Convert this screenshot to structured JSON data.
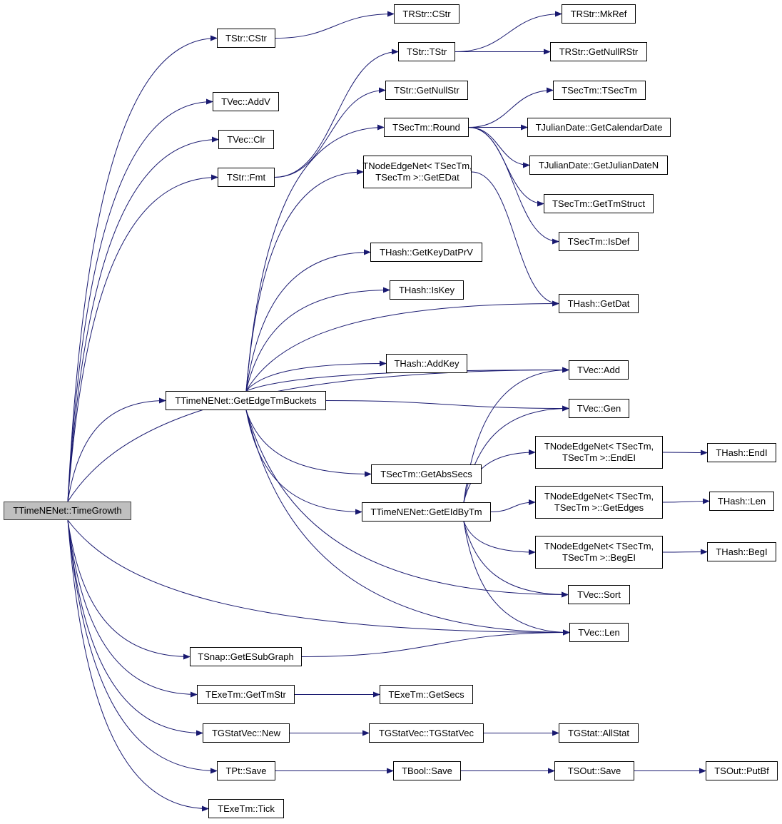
{
  "colors": {
    "edge": "#191970",
    "root_fill": "#bfbfbf",
    "node_fill": "#ffffff",
    "border": "#000000"
  },
  "nodes": [
    {
      "id": "root",
      "lines": [
        "TTimeNENet::TimeGrowth"
      ]
    },
    {
      "id": "strcstr",
      "lines": [
        "TStr::CStr"
      ]
    },
    {
      "id": "rstrcstr",
      "lines": [
        "TRStr::CStr"
      ]
    },
    {
      "id": "mkref",
      "lines": [
        "TRStr::MkRef"
      ]
    },
    {
      "id": "strtstr",
      "lines": [
        "TStr::TStr"
      ]
    },
    {
      "id": "getnullrstr",
      "lines": [
        "TRStr::GetNullRStr"
      ]
    },
    {
      "id": "addv",
      "lines": [
        "TVec::AddV"
      ]
    },
    {
      "id": "getnullstr",
      "lines": [
        "TStr::GetNullStr"
      ]
    },
    {
      "id": "tsectm",
      "lines": [
        "TSecTm::TSecTm"
      ]
    },
    {
      "id": "clr",
      "lines": [
        "TVec::Clr"
      ]
    },
    {
      "id": "round",
      "lines": [
        "TSecTm::Round"
      ]
    },
    {
      "id": "calendar",
      "lines": [
        "TJulianDate::GetCalendarDate"
      ]
    },
    {
      "id": "fmt",
      "lines": [
        "TStr::Fmt"
      ]
    },
    {
      "id": "getedat",
      "lines": [
        "TNodeEdgeNet< TSecTm,",
        "TSecTm >::GetEDat"
      ]
    },
    {
      "id": "juliann",
      "lines": [
        "TJulianDate::GetJulianDateN"
      ]
    },
    {
      "id": "tmstruct",
      "lines": [
        "TSecTm::GetTmStruct"
      ]
    },
    {
      "id": "isdef",
      "lines": [
        "TSecTm::IsDef"
      ]
    },
    {
      "id": "keydatprv",
      "lines": [
        "THash::GetKeyDatPrV"
      ]
    },
    {
      "id": "iskey",
      "lines": [
        "THash::IsKey"
      ]
    },
    {
      "id": "getdat",
      "lines": [
        "THash::GetDat"
      ]
    },
    {
      "id": "addkey",
      "lines": [
        "THash::AddKey"
      ]
    },
    {
      "id": "vecadd",
      "lines": [
        "TVec::Add"
      ]
    },
    {
      "id": "buckets",
      "lines": [
        "TTimeNENet::GetEdgeTmBuckets"
      ]
    },
    {
      "id": "vecgen",
      "lines": [
        "TVec::Gen"
      ]
    },
    {
      "id": "endei",
      "lines": [
        "TNodeEdgeNet< TSecTm,",
        "TSecTm >::EndEI"
      ]
    },
    {
      "id": "hashendi",
      "lines": [
        "THash::EndI"
      ]
    },
    {
      "id": "abssecs",
      "lines": [
        "TSecTm::GetAbsSecs"
      ]
    },
    {
      "id": "getedges",
      "lines": [
        "TNodeEdgeNet< TSecTm,",
        "TSecTm >::GetEdges"
      ]
    },
    {
      "id": "hashlen",
      "lines": [
        "THash::Len"
      ]
    },
    {
      "id": "eidbytm",
      "lines": [
        "TTimeNENet::GetEIdByTm"
      ]
    },
    {
      "id": "begei",
      "lines": [
        "TNodeEdgeNet< TSecTm,",
        "TSecTm >::BegEI"
      ]
    },
    {
      "id": "hashbegi",
      "lines": [
        "THash::BegI"
      ]
    },
    {
      "id": "vecsort",
      "lines": [
        "TVec::Sort"
      ]
    },
    {
      "id": "veclen",
      "lines": [
        "TVec::Len"
      ]
    },
    {
      "id": "esubgraph",
      "lines": [
        "TSnap::GetESubGraph"
      ]
    },
    {
      "id": "gettmstr",
      "lines": [
        "TExeTm::GetTmStr"
      ]
    },
    {
      "id": "getsecs",
      "lines": [
        "TExeTm::GetSecs"
      ]
    },
    {
      "id": "gstatnew",
      "lines": [
        "TGStatVec::New"
      ]
    },
    {
      "id": "gstatctor",
      "lines": [
        "TGStatVec::TGStatVec"
      ]
    },
    {
      "id": "allstat",
      "lines": [
        "TGStat::AllStat"
      ]
    },
    {
      "id": "ptsave",
      "lines": [
        "TPt::Save"
      ]
    },
    {
      "id": "boolsave",
      "lines": [
        "TBool::Save"
      ]
    },
    {
      "id": "soutsave",
      "lines": [
        "TSOut::Save"
      ]
    },
    {
      "id": "putbf",
      "lines": [
        "TSOut::PutBf"
      ]
    },
    {
      "id": "tick",
      "lines": [
        "TExeTm::Tick"
      ]
    }
  ],
  "edges": [
    [
      "root",
      "strcstr"
    ],
    [
      "root",
      "addv"
    ],
    [
      "root",
      "clr"
    ],
    [
      "root",
      "fmt"
    ],
    [
      "root",
      "vecadd"
    ],
    [
      "root",
      "buckets"
    ],
    [
      "root",
      "veclen"
    ],
    [
      "root",
      "esubgraph"
    ],
    [
      "root",
      "gettmstr"
    ],
    [
      "root",
      "gstatnew"
    ],
    [
      "root",
      "ptsave"
    ],
    [
      "root",
      "tick"
    ],
    [
      "strcstr",
      "rstrcstr"
    ],
    [
      "strtstr",
      "mkref"
    ],
    [
      "strtstr",
      "getnullrstr"
    ],
    [
      "fmt",
      "strtstr"
    ],
    [
      "fmt",
      "getnullstr"
    ],
    [
      "round",
      "tsectm"
    ],
    [
      "round",
      "calendar"
    ],
    [
      "round",
      "juliann"
    ],
    [
      "round",
      "tmstruct"
    ],
    [
      "round",
      "isdef"
    ],
    [
      "getedat",
      "getdat"
    ],
    [
      "buckets",
      "round"
    ],
    [
      "buckets",
      "getedat"
    ],
    [
      "buckets",
      "keydatprv"
    ],
    [
      "buckets",
      "iskey"
    ],
    [
      "buckets",
      "getdat"
    ],
    [
      "buckets",
      "addkey"
    ],
    [
      "buckets",
      "vecadd"
    ],
    [
      "buckets",
      "vecgen"
    ],
    [
      "buckets",
      "abssecs"
    ],
    [
      "buckets",
      "eidbytm"
    ],
    [
      "buckets",
      "vecsort"
    ],
    [
      "buckets",
      "veclen"
    ],
    [
      "eidbytm",
      "vecadd"
    ],
    [
      "eidbytm",
      "vecgen"
    ],
    [
      "eidbytm",
      "endei"
    ],
    [
      "eidbytm",
      "getedges"
    ],
    [
      "eidbytm",
      "begei"
    ],
    [
      "eidbytm",
      "vecsort"
    ],
    [
      "eidbytm",
      "veclen"
    ],
    [
      "endei",
      "hashendi"
    ],
    [
      "getedges",
      "hashlen"
    ],
    [
      "begei",
      "hashbegi"
    ],
    [
      "esubgraph",
      "veclen"
    ],
    [
      "gettmstr",
      "getsecs"
    ],
    [
      "gstatnew",
      "gstatctor"
    ],
    [
      "gstatctor",
      "allstat"
    ],
    [
      "ptsave",
      "boolsave"
    ],
    [
      "boolsave",
      "soutsave"
    ],
    [
      "soutsave",
      "putbf"
    ]
  ]
}
